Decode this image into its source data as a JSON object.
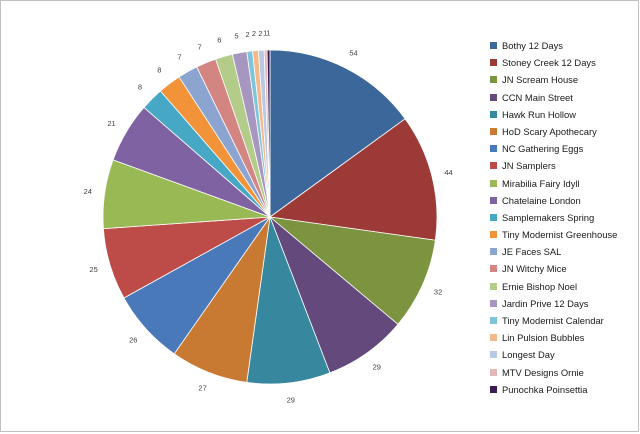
{
  "chart_data": {
    "type": "pie",
    "title": "",
    "legend_position": "right",
    "slices": [
      {
        "label": "Bothy 12 Days",
        "value": 54,
        "color": "#3c679a"
      },
      {
        "label": "Stoney Creek 12 Days",
        "value": 44,
        "color": "#9c3a38"
      },
      {
        "label": "JN Scream House",
        "value": 32,
        "color": "#7c9440"
      },
      {
        "label": "CCN Main Street",
        "value": 29,
        "color": "#644a7c"
      },
      {
        "label": "Hawk Run Hollow",
        "value": 29,
        "color": "#37879e"
      },
      {
        "label": "HoD Scary Apothecary",
        "value": 27,
        "color": "#c97a32"
      },
      {
        "label": "NC Gathering Eggs",
        "value": 26,
        "color": "#4a79b9"
      },
      {
        "label": "JN Samplers",
        "value": 25,
        "color": "#bd4b48"
      },
      {
        "label": "Mirabilia Fairy Idyll",
        "value": 24,
        "color": "#98b954"
      },
      {
        "label": "Chatelaine London",
        "value": 21,
        "color": "#7e62a1"
      },
      {
        "label": "Samplemakers Spring",
        "value": 8,
        "color": "#46a8c5"
      },
      {
        "label": "Tiny Modernist Greenhouse",
        "value": 8,
        "color": "#f39339"
      },
      {
        "label": "JE Faces SAL",
        "value": 7,
        "color": "#8ba5d0"
      },
      {
        "label": "JN Witchy Mice",
        "value": 7,
        "color": "#d38582"
      },
      {
        "label": "Ernie Bishop Noel",
        "value": 6,
        "color": "#b3cc8a"
      },
      {
        "label": "Jardin Prive 12 Days",
        "value": 5,
        "color": "#a797c0"
      },
      {
        "label": "Tiny Modernist Calendar",
        "value": 2,
        "color": "#7fc4d9"
      },
      {
        "label": "Lin Pulsion Bubbles",
        "value": 2,
        "color": "#f6b88a"
      },
      {
        "label": "Longest Day",
        "value": 2,
        "color": "#b9c8e3"
      },
      {
        "label": "MTV Designs Ornie",
        "value": 1,
        "color": "#e4b7b6"
      },
      {
        "label": "Punochka Poinsettia",
        "value": 1,
        "color": "#3b1d56"
      }
    ]
  }
}
